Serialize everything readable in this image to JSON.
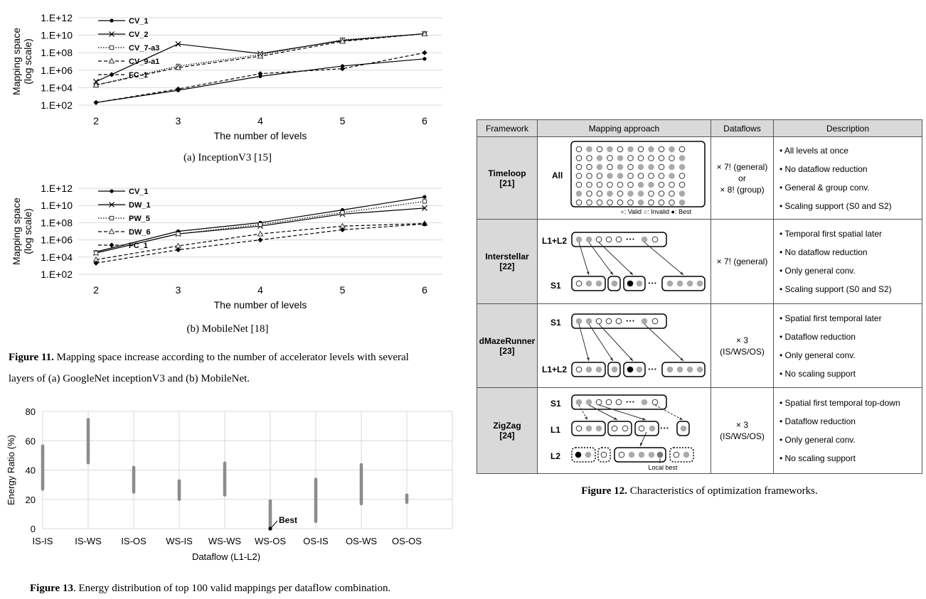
{
  "fig11": {
    "caption_a": "(a) InceptionV3 [15]",
    "caption_b": "(b) MobileNet [18]",
    "caption_label": "Figure 11.",
    "caption_text": "Mapping space increase according to the number of accelerator levels with several",
    "caption_text2": "layers of (a) GoogleNet inceptionV3 and (b) MobileNet."
  },
  "fig12": {
    "caption_label": "Figure 12.",
    "caption_text": "Characteristics of optimization frameworks.",
    "headers": [
      "Framework",
      "Mapping approach",
      "Dataflows",
      "Description"
    ],
    "rows": [
      {
        "name": "Timeloop",
        "ref": "[21]",
        "levels": [
          "All"
        ],
        "dataflows": [
          "× 7! (general)",
          "or",
          "× 8! (group)"
        ],
        "desc": [
          "• All levels at once",
          "• No dataflow reduction",
          "• General & group conv.",
          "• Scaling support (S0 and S2)"
        ],
        "legend": [
          "Valid",
          "Invalid",
          "Best"
        ]
      },
      {
        "name": "Interstellar",
        "ref": "[22]",
        "levels": [
          "L1+L2",
          "S1"
        ],
        "dataflows": [
          "× 7! (general)"
        ],
        "desc": [
          "• Temporal first spatial later",
          "• No dataflow reduction",
          "• Only general conv.",
          "• Scaling support (S0 and S2)"
        ]
      },
      {
        "name": "dMazeRunner",
        "ref": "[23]",
        "levels": [
          "S1",
          "L1+L2"
        ],
        "dataflows": [
          "× 3",
          "(IS/WS/OS)"
        ],
        "desc": [
          "• Spatial first temporal later",
          "• Dataflow reduction",
          "• Only general conv.",
          "• No scaling support"
        ]
      },
      {
        "name": "ZigZag",
        "ref": "[24]",
        "levels": [
          "S1",
          "L1",
          "L2"
        ],
        "dataflows": [
          "× 3",
          "(IS/WS/OS)"
        ],
        "desc": [
          "• Spatial first temporal top-down",
          "• Dataflow reduction",
          "• Only general conv.",
          "• No scaling support"
        ],
        "local_best": "Local best"
      }
    ]
  },
  "fig13": {
    "caption_label": "Figure 13",
    "caption_text": ". Energy distribution of top 100 valid mappings per dataflow combination.",
    "best_label": "Best"
  },
  "colors": {
    "scatter": "#8c8c8c",
    "grid": "#d9d9d9",
    "table_header": "#d9d9d9"
  },
  "chart_data": [
    {
      "type": "line",
      "xlabel": "The number of levels",
      "ylabel": [
        "Mapping space",
        "(log scale)"
      ],
      "x": [
        2,
        3,
        4,
        5,
        6
      ],
      "yscale": "log",
      "ylim": [
        100,
        1000000000000
      ],
      "yticks": [
        "1.E+02",
        "1.E+04",
        "1.E+06",
        "1.E+08",
        "1.E+10",
        "1.E+12"
      ],
      "legend_position": "top-left",
      "series": [
        {
          "name": "CV_1",
          "marker": "dot",
          "dash": "solid",
          "values": [
            200,
            5000,
            200000,
            3000000,
            20000000
          ]
        },
        {
          "name": "CV_2",
          "marker": "x",
          "dash": "solid",
          "values": [
            50000,
            1000000000,
            80000000,
            2500000000,
            15000000000
          ]
        },
        {
          "name": "CV_7-a3",
          "marker": "square",
          "dash": "dotted",
          "values": [
            20000,
            3000000,
            60000000,
            3000000000,
            15000000000
          ]
        },
        {
          "name": "CV_9-a1",
          "marker": "triangle",
          "dash": "dashed",
          "values": [
            20000,
            2000000,
            40000000,
            2000000000,
            15000000000
          ]
        },
        {
          "name": "FC_1",
          "marker": "diamond",
          "dash": "dashed",
          "values": [
            200,
            7000,
            400000,
            1500000,
            100000000
          ]
        }
      ]
    },
    {
      "type": "line",
      "xlabel": "The number of levels",
      "ylabel": [
        "Mapping space",
        "(log scale)"
      ],
      "x": [
        2,
        3,
        4,
        5,
        6
      ],
      "yscale": "log",
      "ylim": [
        100,
        1000000000000
      ],
      "yticks": [
        "1.E+02",
        "1.E+04",
        "1.E+06",
        "1.E+08",
        "1.E+10",
        "1.E+12"
      ],
      "legend_position": "top-left",
      "series": [
        {
          "name": "CV_1",
          "marker": "dot",
          "dash": "solid",
          "values": [
            40000,
            10000000,
            100000000,
            3000000000,
            100000000000
          ]
        },
        {
          "name": "DW_1",
          "marker": "x",
          "dash": "solid",
          "values": [
            30000,
            5000000,
            40000000,
            1000000000,
            5000000000
          ]
        },
        {
          "name": "PW_5",
          "marker": "square",
          "dash": "dotted",
          "values": [
            30000,
            5000000,
            60000000,
            1500000000,
            30000000000
          ]
        },
        {
          "name": "DW_6",
          "marker": "triangle",
          "dash": "dashed",
          "values": [
            5000,
            200000,
            5000000,
            40000000,
            80000000
          ]
        },
        {
          "name": "FC_1",
          "marker": "diamond",
          "dash": "dashed",
          "values": [
            2000,
            70000,
            1000000,
            15000000,
            70000000
          ]
        }
      ]
    },
    {
      "type": "scatter",
      "xlabel": "Dataflow (L1-L2)",
      "ylabel": "Energy Ratio (%)",
      "categories": [
        "IS-IS",
        "IS-WS",
        "IS-OS",
        "WS-IS",
        "WS-WS",
        "WS-OS",
        "OS-IS",
        "OS-WS",
        "OS-OS"
      ],
      "ylim": [
        0,
        80
      ],
      "yticks": [
        0,
        20,
        40,
        60,
        80
      ],
      "grid": true,
      "ranges": [
        [
          27,
          57
        ],
        [
          45,
          75
        ],
        [
          25,
          42
        ],
        [
          20,
          33
        ],
        [
          23,
          45
        ],
        [
          0,
          19
        ],
        [
          5,
          34
        ],
        [
          17,
          44
        ],
        [
          18,
          23
        ]
      ],
      "best": {
        "category": "WS-OS",
        "value": 0
      }
    }
  ]
}
